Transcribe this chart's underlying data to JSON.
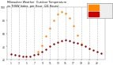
{
  "title": "Milwaukee Weather  Outdoor Temperature vs THSW Index  per Hour  (24 Hours)",
  "hours": [
    1,
    2,
    3,
    4,
    5,
    6,
    7,
    8,
    9,
    10,
    11,
    12,
    13,
    14,
    15,
    16,
    17,
    18,
    19,
    20,
    21,
    22,
    23,
    24
  ],
  "temp": [
    28,
    27,
    26,
    25,
    25,
    25,
    27,
    29,
    32,
    36,
    40,
    44,
    47,
    49,
    50,
    49,
    47,
    45,
    43,
    40,
    37,
    34,
    32,
    30
  ],
  "thsw": [
    null,
    null,
    null,
    null,
    null,
    null,
    null,
    32,
    42,
    56,
    68,
    80,
    90,
    93,
    91,
    83,
    72,
    57,
    44,
    null,
    null,
    null,
    null,
    null
  ],
  "temp_color": "#880000",
  "thsw_color": "#FF8800",
  "background_color": "#ffffff",
  "grid_color": "#bbbbbb",
  "plot_bg": "#ffffff",
  "ylim_min": 20,
  "ylim_max": 100,
  "xlim_min": 0,
  "xlim_max": 25,
  "xticks": [
    1,
    3,
    5,
    7,
    9,
    11,
    13,
    15,
    17,
    19,
    21,
    23
  ],
  "yticks": [
    20,
    40,
    60,
    80,
    100
  ],
  "vgrid_hours": [
    1,
    3,
    5,
    7,
    9,
    11,
    13,
    15,
    17,
    19,
    21,
    23
  ],
  "legend_orange_color": "#FF8800",
  "legend_red_color": "#CC0000",
  "dot_size": 3
}
